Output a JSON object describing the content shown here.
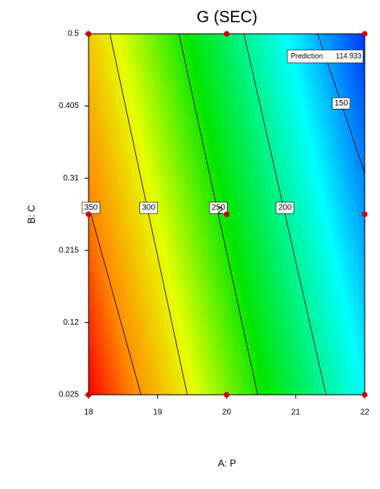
{
  "chart_data": {
    "type": "contour",
    "title": "G (SEC)",
    "x_label": "A: P",
    "y_label": "B: C",
    "xlim": [
      18,
      22
    ],
    "ylim": [
      0.025,
      0.5
    ],
    "xticks": [
      18,
      19,
      20,
      21,
      22
    ],
    "yticks": [
      0.025,
      0.12,
      0.215,
      0.31,
      0.405,
      0.5
    ],
    "contours": [
      {
        "level": 350,
        "x": [
          18,
          18.76
        ],
        "y": [
          0.274,
          0.025
        ]
      },
      {
        "level": 300,
        "x": [
          18.31,
          19.43
        ],
        "y": [
          0.5,
          0.025
        ]
      },
      {
        "level": 250,
        "x": [
          19.31,
          20.45
        ],
        "y": [
          0.5,
          0.025
        ]
      },
      {
        "level": 200,
        "x": [
          20.25,
          21.44
        ],
        "y": [
          0.5,
          0.025
        ]
      },
      {
        "level": 150,
        "x": [
          21.32,
          22
        ],
        "y": [
          0.5,
          0.317
        ]
      }
    ],
    "line_color": "#000000",
    "design_points": {
      "color": "#cc0000",
      "x": [
        18,
        20,
        22,
        18,
        20,
        22,
        18,
        20,
        22
      ],
      "y": [
        0.5,
        0.5,
        0.5,
        0.2625,
        0.2625,
        0.2625,
        0.025,
        0.025,
        0.025
      ],
      "labels": [
        null,
        null,
        null,
        null,
        "2",
        null,
        null,
        null,
        null
      ]
    },
    "prediction_label": "Prediction",
    "prediction_value": 114.933
  }
}
